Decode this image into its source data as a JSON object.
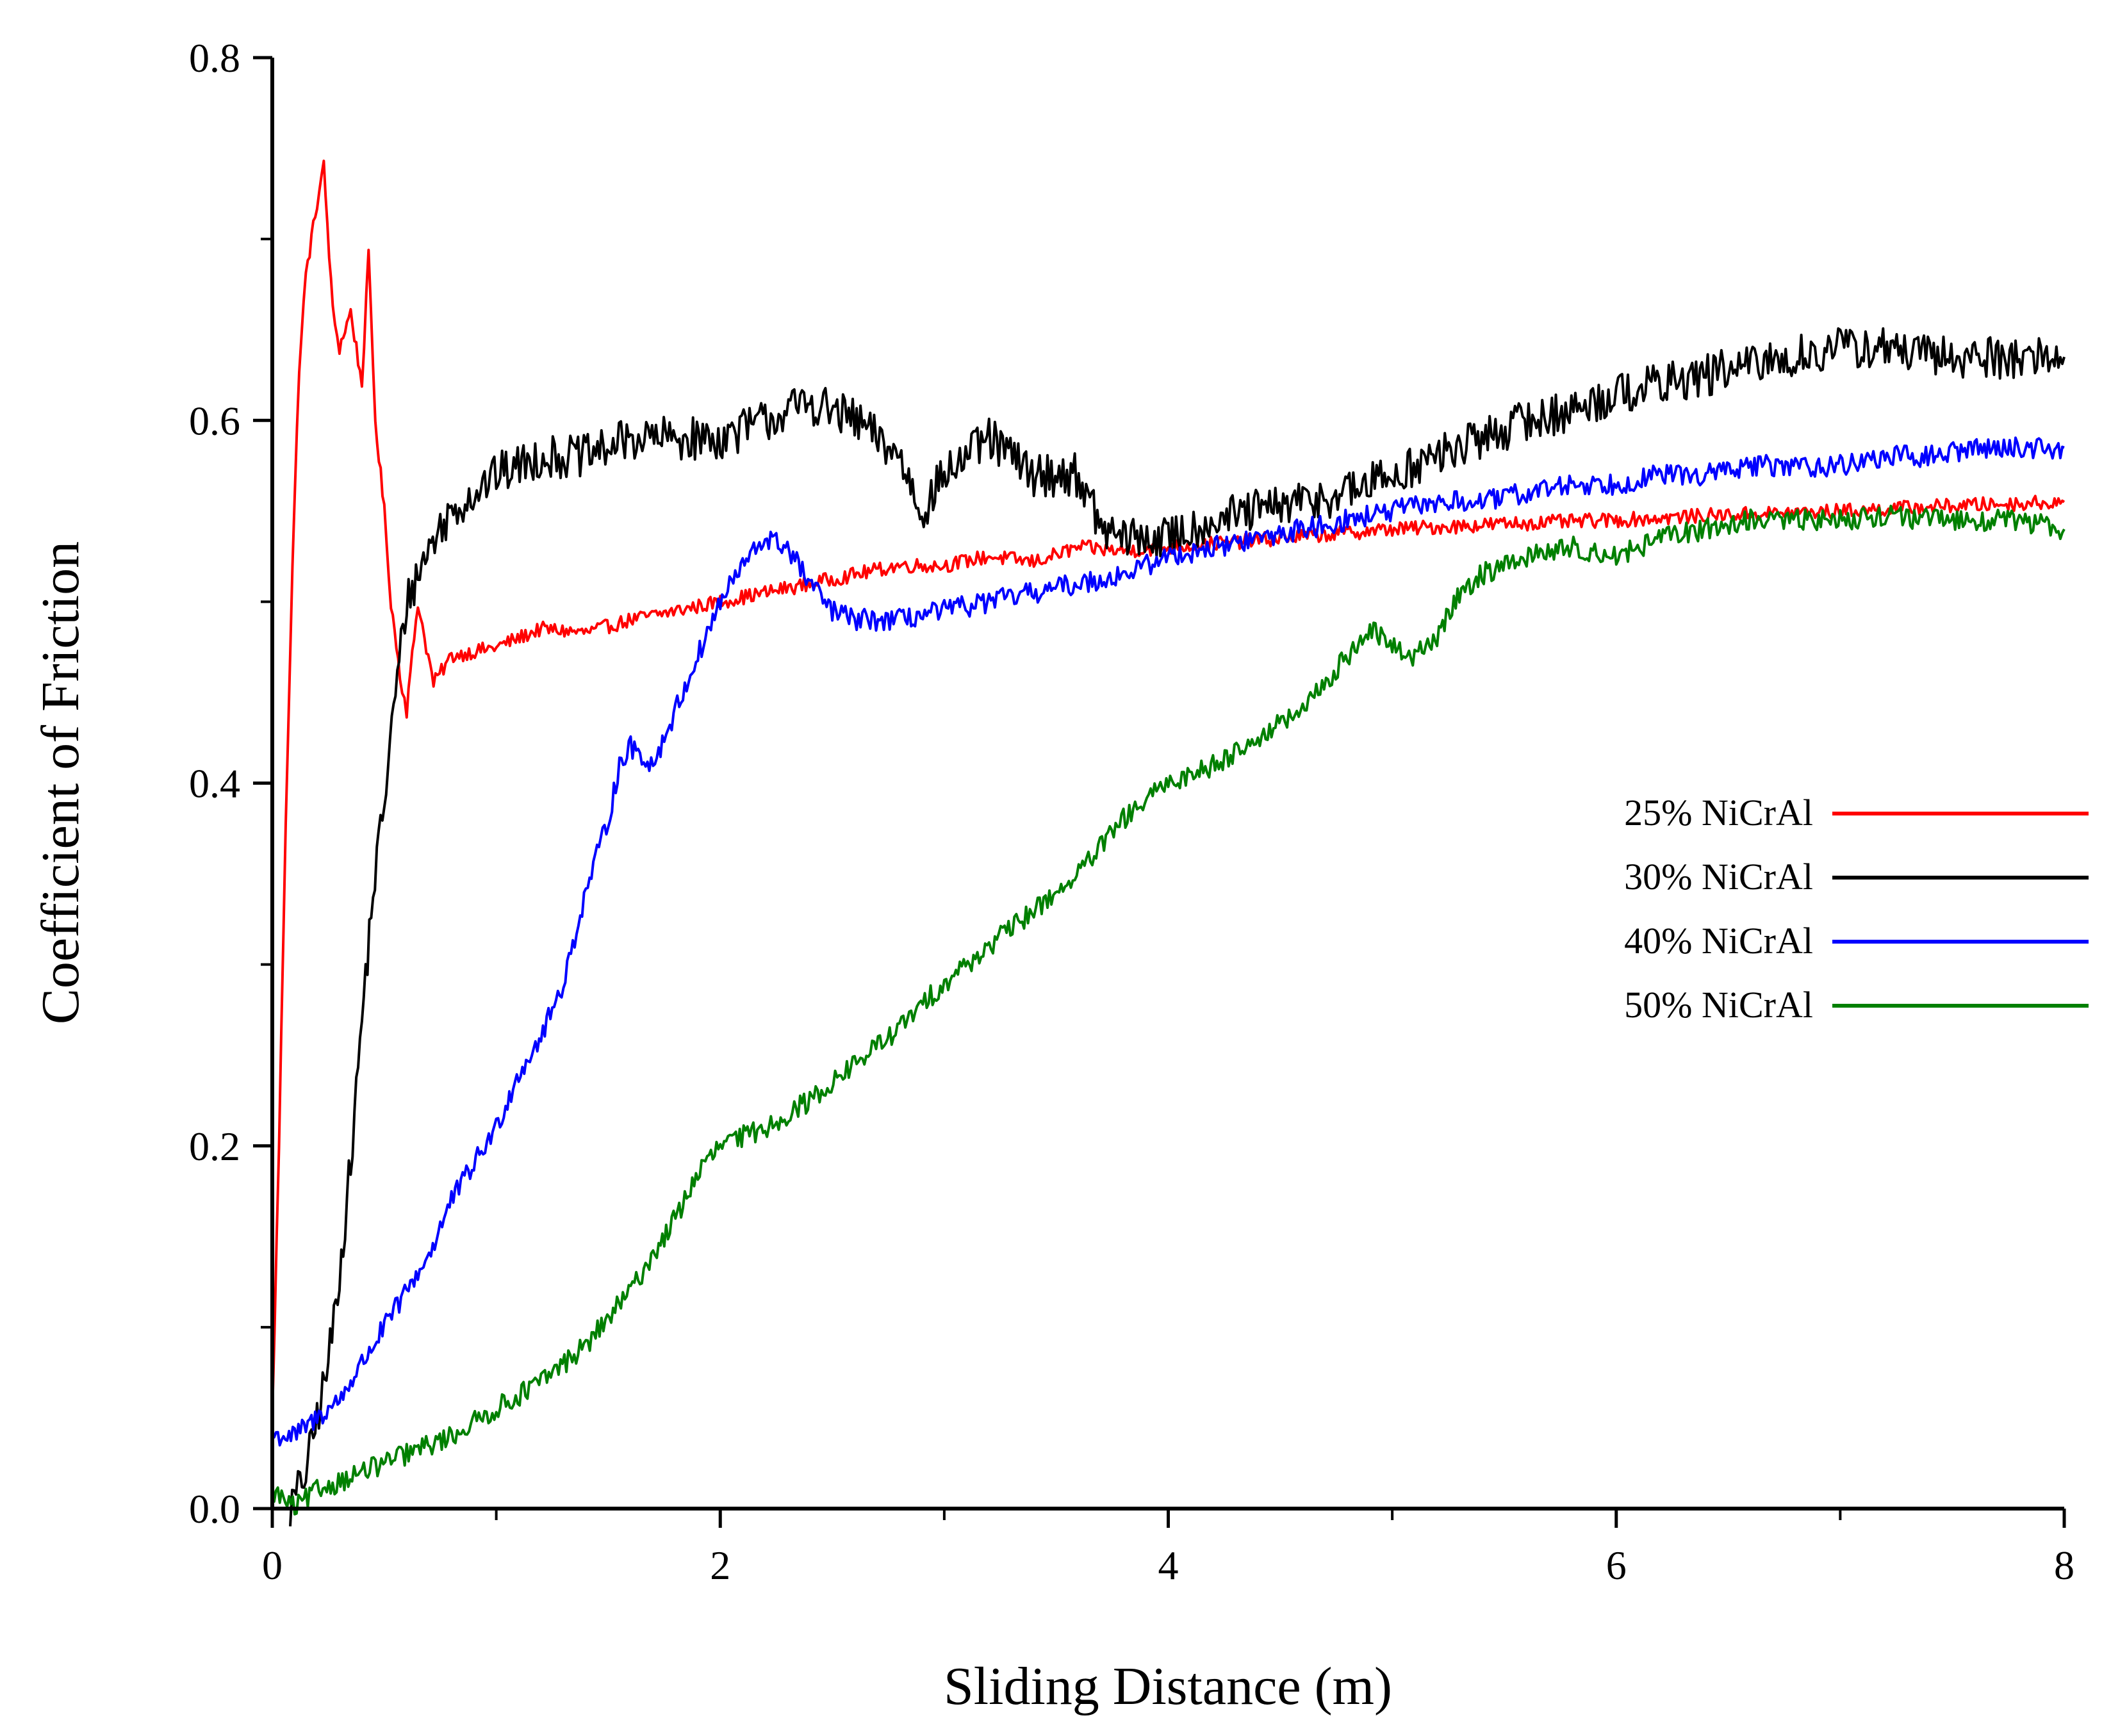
{
  "chart_data": {
    "type": "line",
    "title": "",
    "xlabel": "Sliding Distance (m)",
    "ylabel": "Coefficient of Friction",
    "xlim": [
      0,
      8
    ],
    "ylim": [
      0,
      0.8
    ],
    "x_ticks": [
      "0",
      "2",
      "4",
      "6",
      "8"
    ],
    "y_ticks": [
      "0.0",
      "0.2",
      "0.4",
      "0.6",
      "0.8"
    ],
    "grid": false,
    "legend_position": "right",
    "series": [
      {
        "name": "25% NiCrAl",
        "color": "#ff0000",
        "noise": 0.004,
        "points": [
          [
            0,
            0.05
          ],
          [
            0.03,
            0.2
          ],
          [
            0.06,
            0.38
          ],
          [
            0.09,
            0.52
          ],
          [
            0.12,
            0.63
          ],
          [
            0.15,
            0.68
          ],
          [
            0.2,
            0.72
          ],
          [
            0.23,
            0.74
          ],
          [
            0.27,
            0.66
          ],
          [
            0.3,
            0.64
          ],
          [
            0.35,
            0.66
          ],
          [
            0.4,
            0.62
          ],
          [
            0.43,
            0.69
          ],
          [
            0.46,
            0.6
          ],
          [
            0.5,
            0.55
          ],
          [
            0.53,
            0.5
          ],
          [
            0.57,
            0.46
          ],
          [
            0.6,
            0.44
          ],
          [
            0.65,
            0.5
          ],
          [
            0.68,
            0.48
          ],
          [
            0.72,
            0.455
          ],
          [
            0.8,
            0.47
          ],
          [
            1.0,
            0.475
          ],
          [
            1.2,
            0.485
          ],
          [
            1.4,
            0.483
          ],
          [
            1.6,
            0.49
          ],
          [
            1.8,
            0.495
          ],
          [
            2.0,
            0.5
          ],
          [
            2.2,
            0.505
          ],
          [
            2.4,
            0.51
          ],
          [
            2.6,
            0.515
          ],
          [
            2.8,
            0.52
          ],
          [
            3.0,
            0.52
          ],
          [
            3.2,
            0.525
          ],
          [
            3.4,
            0.522
          ],
          [
            3.6,
            0.53
          ],
          [
            3.8,
            0.528
          ],
          [
            4.0,
            0.53
          ],
          [
            4.5,
            0.535
          ],
          [
            5.0,
            0.54
          ],
          [
            5.5,
            0.543
          ],
          [
            6.0,
            0.545
          ],
          [
            6.5,
            0.548
          ],
          [
            7.0,
            0.55
          ],
          [
            7.5,
            0.553
          ],
          [
            8.0,
            0.555
          ]
        ]
      },
      {
        "name": "30% NiCrAl",
        "color": "#000000",
        "noise": 0.012,
        "points": [
          [
            0.08,
            0.0
          ],
          [
            0.15,
            0.02
          ],
          [
            0.2,
            0.05
          ],
          [
            0.25,
            0.08
          ],
          [
            0.3,
            0.13
          ],
          [
            0.35,
            0.19
          ],
          [
            0.4,
            0.27
          ],
          [
            0.45,
            0.34
          ],
          [
            0.5,
            0.39
          ],
          [
            0.55,
            0.45
          ],
          [
            0.6,
            0.5
          ],
          [
            0.7,
            0.53
          ],
          [
            0.8,
            0.55
          ],
          [
            1.0,
            0.57
          ],
          [
            1.2,
            0.58
          ],
          [
            1.4,
            0.58
          ],
          [
            1.6,
            0.59
          ],
          [
            1.8,
            0.59
          ],
          [
            2.0,
            0.59
          ],
          [
            2.2,
            0.6
          ],
          [
            2.4,
            0.61
          ],
          [
            2.6,
            0.6
          ],
          [
            2.8,
            0.58
          ],
          [
            2.9,
            0.55
          ],
          [
            3.0,
            0.57
          ],
          [
            3.2,
            0.59
          ],
          [
            3.4,
            0.57
          ],
          [
            3.6,
            0.57
          ],
          [
            3.7,
            0.54
          ],
          [
            3.8,
            0.535
          ],
          [
            4.0,
            0.535
          ],
          [
            4.2,
            0.545
          ],
          [
            4.4,
            0.55
          ],
          [
            4.6,
            0.555
          ],
          [
            4.8,
            0.56
          ],
          [
            5.0,
            0.57
          ],
          [
            5.2,
            0.58
          ],
          [
            5.4,
            0.59
          ],
          [
            5.6,
            0.6
          ],
          [
            5.8,
            0.605
          ],
          [
            6.0,
            0.615
          ],
          [
            6.2,
            0.62
          ],
          [
            6.4,
            0.625
          ],
          [
            6.6,
            0.63
          ],
          [
            6.8,
            0.635
          ],
          [
            7.0,
            0.64
          ],
          [
            7.2,
            0.64
          ],
          [
            7.4,
            0.635
          ],
          [
            7.6,
            0.635
          ],
          [
            7.8,
            0.635
          ],
          [
            8.0,
            0.635
          ]
        ]
      },
      {
        "name": "40% NiCrAl",
        "color": "#0000ff",
        "noise": 0.006,
        "points": [
          [
            0,
            0.04
          ],
          [
            0.1,
            0.04
          ],
          [
            0.2,
            0.05
          ],
          [
            0.3,
            0.06
          ],
          [
            0.4,
            0.08
          ],
          [
            0.5,
            0.1
          ],
          [
            0.6,
            0.12
          ],
          [
            0.7,
            0.14
          ],
          [
            0.8,
            0.17
          ],
          [
            0.9,
            0.19
          ],
          [
            1.0,
            0.21
          ],
          [
            1.1,
            0.24
          ],
          [
            1.2,
            0.26
          ],
          [
            1.3,
            0.29
          ],
          [
            1.4,
            0.34
          ],
          [
            1.5,
            0.38
          ],
          [
            1.55,
            0.41
          ],
          [
            1.6,
            0.42
          ],
          [
            1.7,
            0.41
          ],
          [
            1.8,
            0.44
          ],
          [
            1.9,
            0.47
          ],
          [
            2.0,
            0.5
          ],
          [
            2.1,
            0.52
          ],
          [
            2.2,
            0.535
          ],
          [
            2.3,
            0.53
          ],
          [
            2.4,
            0.51
          ],
          [
            2.5,
            0.495
          ],
          [
            2.6,
            0.49
          ],
          [
            2.8,
            0.49
          ],
          [
            3.0,
            0.495
          ],
          [
            3.2,
            0.5
          ],
          [
            3.4,
            0.505
          ],
          [
            3.6,
            0.51
          ],
          [
            3.8,
            0.515
          ],
          [
            4.0,
            0.525
          ],
          [
            4.2,
            0.53
          ],
          [
            4.4,
            0.535
          ],
          [
            4.6,
            0.54
          ],
          [
            4.8,
            0.545
          ],
          [
            5.0,
            0.55
          ],
          [
            5.2,
            0.555
          ],
          [
            5.4,
            0.555
          ],
          [
            5.6,
            0.56
          ],
          [
            5.8,
            0.565
          ],
          [
            6.0,
            0.565
          ],
          [
            6.2,
            0.57
          ],
          [
            6.4,
            0.57
          ],
          [
            6.6,
            0.575
          ],
          [
            6.8,
            0.575
          ],
          [
            7.0,
            0.575
          ],
          [
            7.2,
            0.58
          ],
          [
            7.4,
            0.58
          ],
          [
            7.6,
            0.585
          ],
          [
            7.8,
            0.585
          ],
          [
            8.0,
            0.585
          ]
        ]
      },
      {
        "name": "50% NiCrAl",
        "color": "#008000",
        "noise": 0.006,
        "points": [
          [
            0,
            0.01
          ],
          [
            0.1,
            0.0
          ],
          [
            0.2,
            0.01
          ],
          [
            0.4,
            0.02
          ],
          [
            0.6,
            0.03
          ],
          [
            0.8,
            0.04
          ],
          [
            1.0,
            0.055
          ],
          [
            1.2,
            0.07
          ],
          [
            1.4,
            0.09
          ],
          [
            1.6,
            0.12
          ],
          [
            1.7,
            0.14
          ],
          [
            1.8,
            0.16
          ],
          [
            1.9,
            0.185
          ],
          [
            2.0,
            0.2
          ],
          [
            2.2,
            0.21
          ],
          [
            2.4,
            0.225
          ],
          [
            2.6,
            0.245
          ],
          [
            2.8,
            0.265
          ],
          [
            3.0,
            0.29
          ],
          [
            3.2,
            0.31
          ],
          [
            3.4,
            0.33
          ],
          [
            3.6,
            0.35
          ],
          [
            3.8,
            0.38
          ],
          [
            4.0,
            0.4
          ],
          [
            4.2,
            0.41
          ],
          [
            4.4,
            0.425
          ],
          [
            4.6,
            0.44
          ],
          [
            4.8,
            0.47
          ],
          [
            4.9,
            0.485
          ],
          [
            5.0,
            0.475
          ],
          [
            5.1,
            0.47
          ],
          [
            5.2,
            0.48
          ],
          [
            5.3,
            0.505
          ],
          [
            5.4,
            0.515
          ],
          [
            5.6,
            0.525
          ],
          [
            5.8,
            0.53
          ],
          [
            6.0,
            0.525
          ],
          [
            6.2,
            0.535
          ],
          [
            6.4,
            0.54
          ],
          [
            6.6,
            0.545
          ],
          [
            6.8,
            0.545
          ],
          [
            7.0,
            0.545
          ],
          [
            7.2,
            0.548
          ],
          [
            7.4,
            0.545
          ],
          [
            7.6,
            0.545
          ],
          [
            7.8,
            0.545
          ],
          [
            8.0,
            0.54
          ]
        ]
      }
    ]
  }
}
